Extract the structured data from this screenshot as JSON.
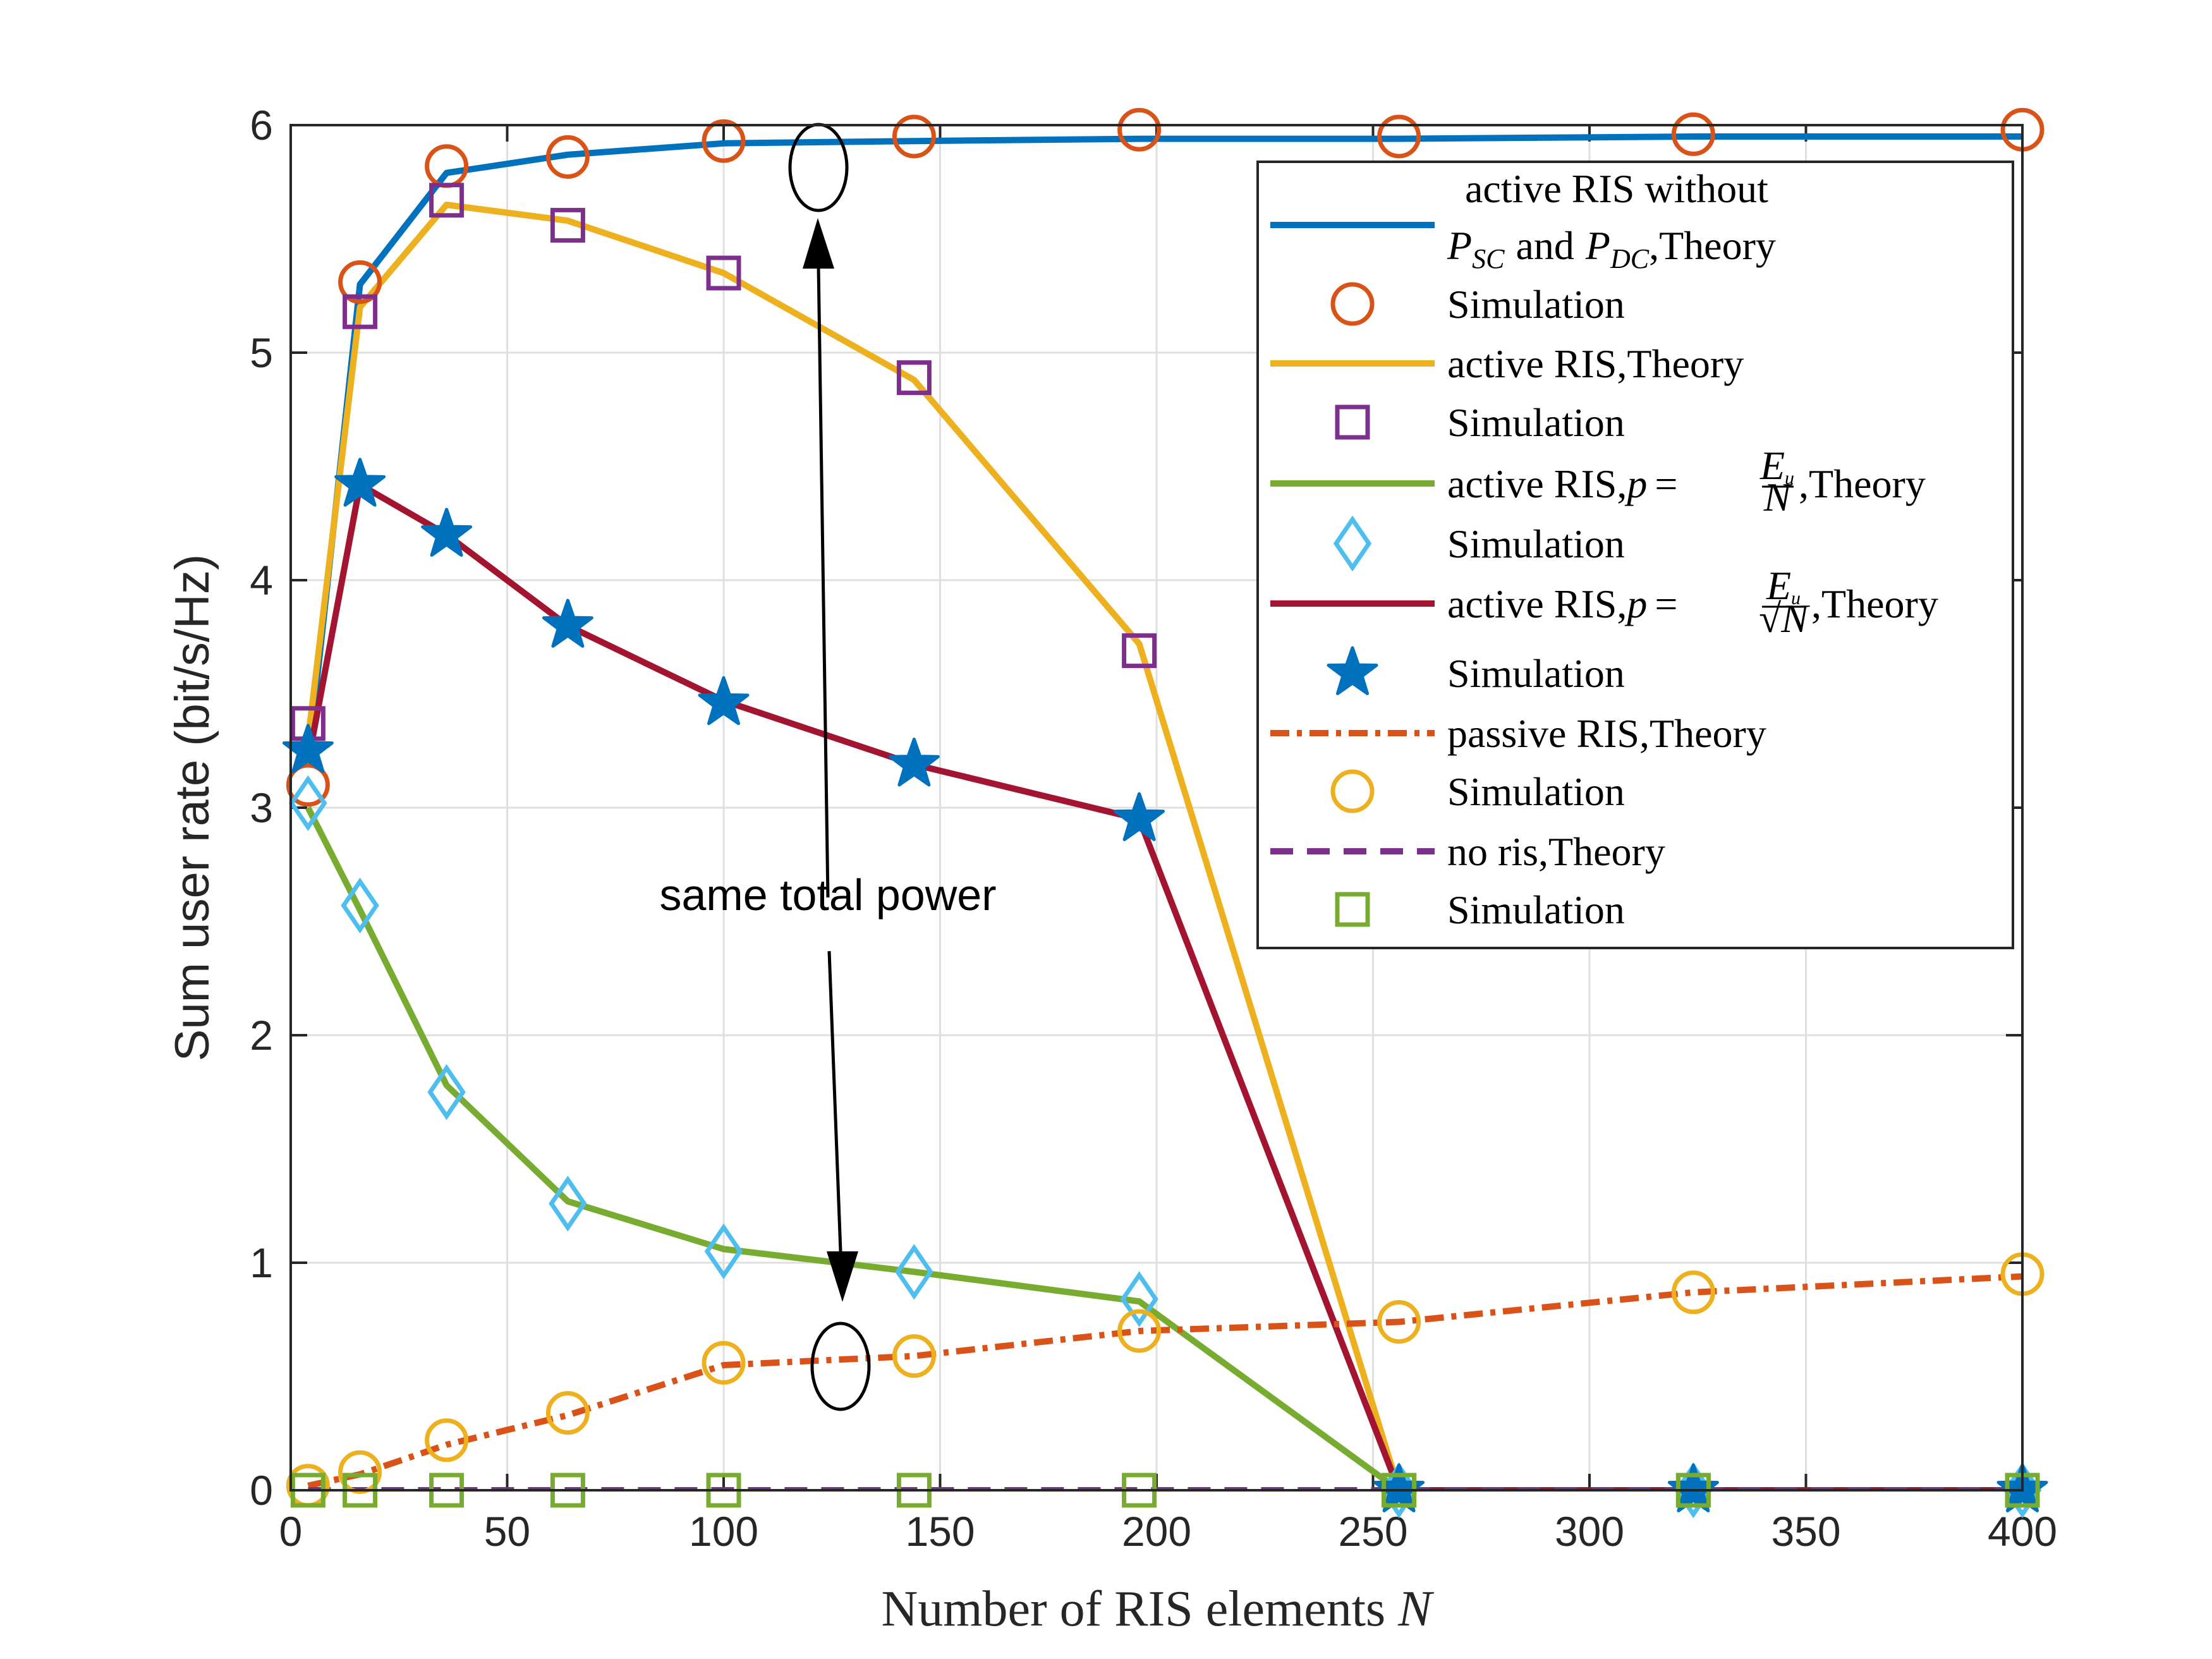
{
  "chart_data": {
    "type": "line",
    "title": "",
    "xlabel": "Number of RIS elements N",
    "ylabel": "Sum user rate (bit/s/Hz)",
    "xlim": [
      0,
      400
    ],
    "ylim": [
      0,
      6
    ],
    "xticks": [
      0,
      50,
      100,
      150,
      200,
      250,
      300,
      350,
      400
    ],
    "yticks": [
      0,
      1,
      2,
      3,
      4,
      5,
      6
    ],
    "grid": true,
    "legend_position": "top-right",
    "annotation": "same total power",
    "series": [
      {
        "name": "active RIS without P_SC and P_DC,Theory",
        "kind": "theory",
        "color": "#0072BD",
        "dash": "solid",
        "x": [
          4,
          16,
          36,
          64,
          100,
          144,
          196,
          256,
          324,
          400
        ],
        "y": [
          3.2,
          5.3,
          5.79,
          5.87,
          5.92,
          5.93,
          5.94,
          5.94,
          5.95,
          5.95
        ]
      },
      {
        "name": "Simulation",
        "kind": "sim",
        "color": "#D95319",
        "marker": "circle",
        "x": [
          4,
          16,
          36,
          64,
          100,
          144,
          196,
          256,
          324,
          400
        ],
        "y": [
          3.1,
          5.31,
          5.82,
          5.86,
          5.93,
          5.95,
          5.98,
          5.95,
          5.96,
          5.98
        ]
      },
      {
        "name": "active RIS,Theory",
        "kind": "theory",
        "color": "#EDB120",
        "dash": "solid",
        "x": [
          4,
          16,
          36,
          64,
          100,
          144,
          196,
          256,
          324,
          400
        ],
        "y": [
          3.3,
          5.2,
          5.65,
          5.58,
          5.35,
          4.88,
          3.72,
          0.0,
          0.0,
          0.0
        ]
      },
      {
        "name": "Simulation",
        "kind": "sim",
        "color": "#7E2F8E",
        "marker": "square",
        "x": [
          4,
          16,
          36,
          64,
          100,
          144,
          196,
          256,
          324,
          400
        ],
        "y": [
          3.37,
          5.18,
          5.67,
          5.56,
          5.35,
          4.89,
          3.69,
          0.0,
          0.0,
          0.0
        ]
      },
      {
        "name": "active RIS,p = Eu/N,Theory",
        "kind": "theory",
        "color": "#77AC30",
        "dash": "solid",
        "x": [
          4,
          16,
          36,
          64,
          100,
          144,
          196,
          256,
          324,
          400
        ],
        "y": [
          3.0,
          2.55,
          1.78,
          1.27,
          1.06,
          0.96,
          0.83,
          0.0,
          0.0,
          0.0
        ]
      },
      {
        "name": "Simulation",
        "kind": "sim",
        "color": "#4DBEEE",
        "marker": "diamond",
        "x": [
          4,
          16,
          36,
          64,
          100,
          144,
          196,
          256,
          324,
          400
        ],
        "y": [
          3.02,
          2.57,
          1.75,
          1.26,
          1.05,
          0.96,
          0.84,
          0.0,
          0.0,
          0.0
        ]
      },
      {
        "name": "active RIS,p = Eu/√N,Theory",
        "kind": "theory",
        "color": "#A2142F",
        "dash": "solid",
        "x": [
          4,
          16,
          36,
          64,
          100,
          144,
          196,
          256,
          324,
          400
        ],
        "y": [
          3.2,
          4.42,
          4.2,
          3.8,
          3.47,
          3.19,
          2.95,
          0.0,
          0.0,
          0.0
        ]
      },
      {
        "name": "Simulation",
        "kind": "sim",
        "color": "#0072BD",
        "marker": "star",
        "x": [
          4,
          16,
          36,
          64,
          100,
          144,
          196,
          256,
          324,
          400
        ],
        "y": [
          3.25,
          4.42,
          4.2,
          3.8,
          3.46,
          3.19,
          2.95,
          0.0,
          0.0,
          0.0
        ]
      },
      {
        "name": "passive RIS,Theory",
        "kind": "theory",
        "color": "#D95319",
        "dash": "dashdot",
        "x": [
          4,
          16,
          36,
          64,
          100,
          144,
          196,
          256,
          324,
          400
        ],
        "y": [
          0.02,
          0.07,
          0.2,
          0.33,
          0.55,
          0.59,
          0.7,
          0.74,
          0.87,
          0.94
        ]
      },
      {
        "name": "Simulation",
        "kind": "sim",
        "color": "#EDB120",
        "marker": "circle",
        "x": [
          4,
          16,
          36,
          64,
          100,
          144,
          196,
          256,
          324,
          400
        ],
        "y": [
          0.02,
          0.08,
          0.22,
          0.34,
          0.56,
          0.59,
          0.7,
          0.74,
          0.87,
          0.95
        ]
      },
      {
        "name": "no ris,Theory",
        "kind": "theory",
        "color": "#7E2F8E",
        "dash": "dashed",
        "x": [
          4,
          16,
          36,
          64,
          100,
          144,
          196,
          256,
          324,
          400
        ],
        "y": [
          0,
          0,
          0,
          0,
          0,
          0,
          0,
          0,
          0,
          0
        ]
      },
      {
        "name": "Simulation",
        "kind": "sim",
        "color": "#77AC30",
        "marker": "square",
        "x": [
          4,
          16,
          36,
          64,
          100,
          144,
          196,
          256,
          324,
          400
        ],
        "y": [
          0,
          0,
          0,
          0,
          0,
          0,
          0,
          0,
          0,
          0
        ]
      }
    ]
  },
  "legend": {
    "l1_line1": "active RIS without",
    "l1_p_sc": "P",
    "l1_sc_sub": "SC",
    "l1_and": "and",
    "l1_p_dc": "P",
    "l1_dc_sub": "DC",
    "l1_theory": ",Theory",
    "sim": "Simulation",
    "l3": "active RIS,Theory",
    "l5_prefix": "active RIS,",
    "p": "p",
    "eq": "=",
    "eu_e": "E",
    "eu_u": "u",
    "n": "N",
    "sqrt_sym": "√",
    "theory_suffix": ",Theory",
    "l9": "passive RIS,Theory",
    "l11": "no ris,Theory"
  }
}
